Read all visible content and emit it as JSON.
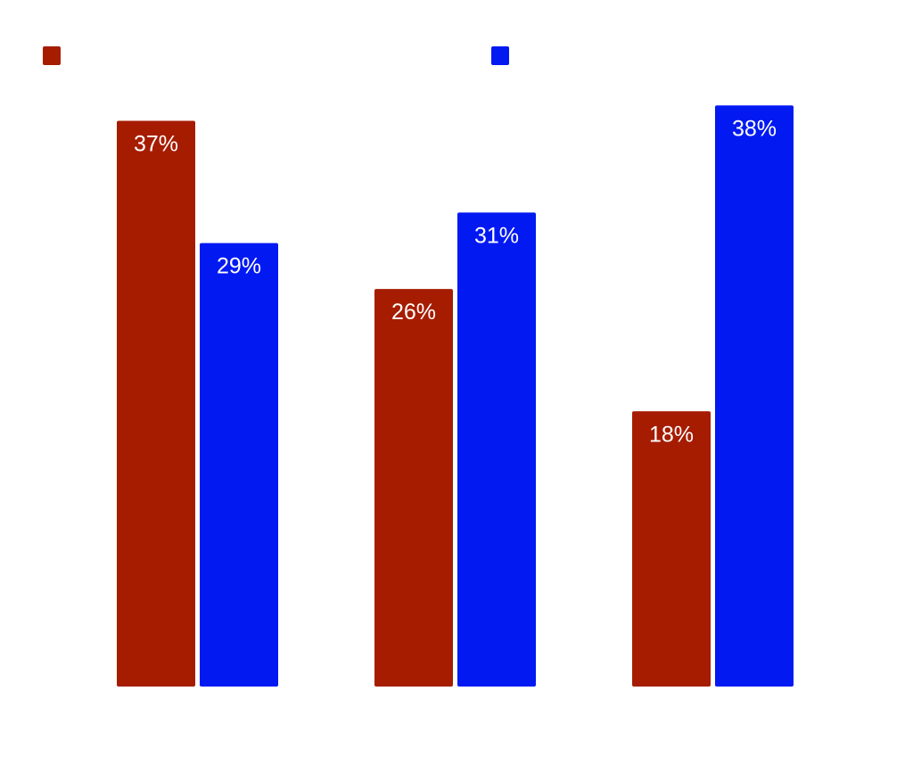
{
  "chart_data": {
    "type": "bar",
    "categories": [
      "",
      "",
      ""
    ],
    "series": [
      {
        "color": "#a61c00",
        "values": [
          37,
          26,
          18
        ]
      },
      {
        "color": "#0219f2",
        "values": [
          29,
          31,
          38
        ]
      }
    ],
    "value_labels": [
      [
        "37%",
        "26%",
        "18%"
      ],
      [
        "29%",
        "31%",
        "38%"
      ]
    ],
    "ylim": [
      0,
      40
    ],
    "grid": false,
    "legend": "top"
  }
}
